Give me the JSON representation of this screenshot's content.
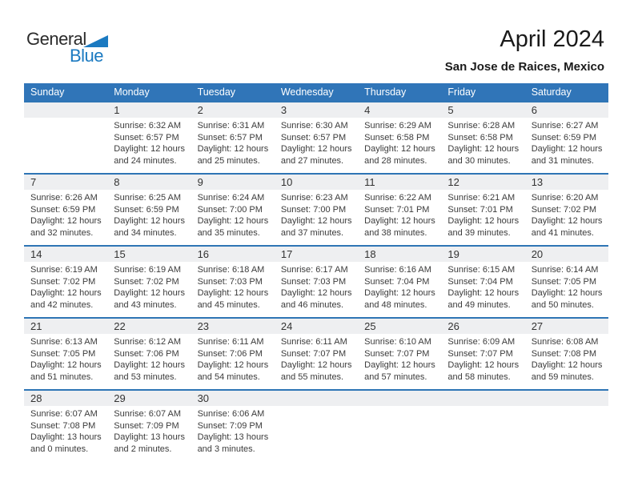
{
  "logo": {
    "general": "General",
    "blue": "Blue"
  },
  "header": {
    "title": "April 2024",
    "subtitle": "San Jose de Raices, Mexico"
  },
  "colors": {
    "header_bg": "#3075b8",
    "week_divider": "#2e75b5",
    "number_band_bg": "#eeeff1",
    "logo_blue": "#1b7ac1",
    "text": "#3b3b3b"
  },
  "calendar": {
    "day_headers": [
      "Sunday",
      "Monday",
      "Tuesday",
      "Wednesday",
      "Thursday",
      "Friday",
      "Saturday"
    ],
    "weeks": [
      [
        null,
        {
          "num": "1",
          "sunrise": "Sunrise: 6:32 AM",
          "sunset": "Sunset: 6:57 PM",
          "daylight1": "Daylight: 12 hours",
          "daylight2": "and 24 minutes."
        },
        {
          "num": "2",
          "sunrise": "Sunrise: 6:31 AM",
          "sunset": "Sunset: 6:57 PM",
          "daylight1": "Daylight: 12 hours",
          "daylight2": "and 25 minutes."
        },
        {
          "num": "3",
          "sunrise": "Sunrise: 6:30 AM",
          "sunset": "Sunset: 6:57 PM",
          "daylight1": "Daylight: 12 hours",
          "daylight2": "and 27 minutes."
        },
        {
          "num": "4",
          "sunrise": "Sunrise: 6:29 AM",
          "sunset": "Sunset: 6:58 PM",
          "daylight1": "Daylight: 12 hours",
          "daylight2": "and 28 minutes."
        },
        {
          "num": "5",
          "sunrise": "Sunrise: 6:28 AM",
          "sunset": "Sunset: 6:58 PM",
          "daylight1": "Daylight: 12 hours",
          "daylight2": "and 30 minutes."
        },
        {
          "num": "6",
          "sunrise": "Sunrise: 6:27 AM",
          "sunset": "Sunset: 6:59 PM",
          "daylight1": "Daylight: 12 hours",
          "daylight2": "and 31 minutes."
        }
      ],
      [
        {
          "num": "7",
          "sunrise": "Sunrise: 6:26 AM",
          "sunset": "Sunset: 6:59 PM",
          "daylight1": "Daylight: 12 hours",
          "daylight2": "and 32 minutes."
        },
        {
          "num": "8",
          "sunrise": "Sunrise: 6:25 AM",
          "sunset": "Sunset: 6:59 PM",
          "daylight1": "Daylight: 12 hours",
          "daylight2": "and 34 minutes."
        },
        {
          "num": "9",
          "sunrise": "Sunrise: 6:24 AM",
          "sunset": "Sunset: 7:00 PM",
          "daylight1": "Daylight: 12 hours",
          "daylight2": "and 35 minutes."
        },
        {
          "num": "10",
          "sunrise": "Sunrise: 6:23 AM",
          "sunset": "Sunset: 7:00 PM",
          "daylight1": "Daylight: 12 hours",
          "daylight2": "and 37 minutes."
        },
        {
          "num": "11",
          "sunrise": "Sunrise: 6:22 AM",
          "sunset": "Sunset: 7:01 PM",
          "daylight1": "Daylight: 12 hours",
          "daylight2": "and 38 minutes."
        },
        {
          "num": "12",
          "sunrise": "Sunrise: 6:21 AM",
          "sunset": "Sunset: 7:01 PM",
          "daylight1": "Daylight: 12 hours",
          "daylight2": "and 39 minutes."
        },
        {
          "num": "13",
          "sunrise": "Sunrise: 6:20 AM",
          "sunset": "Sunset: 7:02 PM",
          "daylight1": "Daylight: 12 hours",
          "daylight2": "and 41 minutes."
        }
      ],
      [
        {
          "num": "14",
          "sunrise": "Sunrise: 6:19 AM",
          "sunset": "Sunset: 7:02 PM",
          "daylight1": "Daylight: 12 hours",
          "daylight2": "and 42 minutes."
        },
        {
          "num": "15",
          "sunrise": "Sunrise: 6:19 AM",
          "sunset": "Sunset: 7:02 PM",
          "daylight1": "Daylight: 12 hours",
          "daylight2": "and 43 minutes."
        },
        {
          "num": "16",
          "sunrise": "Sunrise: 6:18 AM",
          "sunset": "Sunset: 7:03 PM",
          "daylight1": "Daylight: 12 hours",
          "daylight2": "and 45 minutes."
        },
        {
          "num": "17",
          "sunrise": "Sunrise: 6:17 AM",
          "sunset": "Sunset: 7:03 PM",
          "daylight1": "Daylight: 12 hours",
          "daylight2": "and 46 minutes."
        },
        {
          "num": "18",
          "sunrise": "Sunrise: 6:16 AM",
          "sunset": "Sunset: 7:04 PM",
          "daylight1": "Daylight: 12 hours",
          "daylight2": "and 48 minutes."
        },
        {
          "num": "19",
          "sunrise": "Sunrise: 6:15 AM",
          "sunset": "Sunset: 7:04 PM",
          "daylight1": "Daylight: 12 hours",
          "daylight2": "and 49 minutes."
        },
        {
          "num": "20",
          "sunrise": "Sunrise: 6:14 AM",
          "sunset": "Sunset: 7:05 PM",
          "daylight1": "Daylight: 12 hours",
          "daylight2": "and 50 minutes."
        }
      ],
      [
        {
          "num": "21",
          "sunrise": "Sunrise: 6:13 AM",
          "sunset": "Sunset: 7:05 PM",
          "daylight1": "Daylight: 12 hours",
          "daylight2": "and 51 minutes."
        },
        {
          "num": "22",
          "sunrise": "Sunrise: 6:12 AM",
          "sunset": "Sunset: 7:06 PM",
          "daylight1": "Daylight: 12 hours",
          "daylight2": "and 53 minutes."
        },
        {
          "num": "23",
          "sunrise": "Sunrise: 6:11 AM",
          "sunset": "Sunset: 7:06 PM",
          "daylight1": "Daylight: 12 hours",
          "daylight2": "and 54 minutes."
        },
        {
          "num": "24",
          "sunrise": "Sunrise: 6:11 AM",
          "sunset": "Sunset: 7:07 PM",
          "daylight1": "Daylight: 12 hours",
          "daylight2": "and 55 minutes."
        },
        {
          "num": "25",
          "sunrise": "Sunrise: 6:10 AM",
          "sunset": "Sunset: 7:07 PM",
          "daylight1": "Daylight: 12 hours",
          "daylight2": "and 57 minutes."
        },
        {
          "num": "26",
          "sunrise": "Sunrise: 6:09 AM",
          "sunset": "Sunset: 7:07 PM",
          "daylight1": "Daylight: 12 hours",
          "daylight2": "and 58 minutes."
        },
        {
          "num": "27",
          "sunrise": "Sunrise: 6:08 AM",
          "sunset": "Sunset: 7:08 PM",
          "daylight1": "Daylight: 12 hours",
          "daylight2": "and 59 minutes."
        }
      ],
      [
        {
          "num": "28",
          "sunrise": "Sunrise: 6:07 AM",
          "sunset": "Sunset: 7:08 PM",
          "daylight1": "Daylight: 13 hours",
          "daylight2": "and 0 minutes."
        },
        {
          "num": "29",
          "sunrise": "Sunrise: 6:07 AM",
          "sunset": "Sunset: 7:09 PM",
          "daylight1": "Daylight: 13 hours",
          "daylight2": "and 2 minutes."
        },
        {
          "num": "30",
          "sunrise": "Sunrise: 6:06 AM",
          "sunset": "Sunset: 7:09 PM",
          "daylight1": "Daylight: 13 hours",
          "daylight2": "and 3 minutes."
        },
        null,
        null,
        null,
        null
      ]
    ]
  }
}
